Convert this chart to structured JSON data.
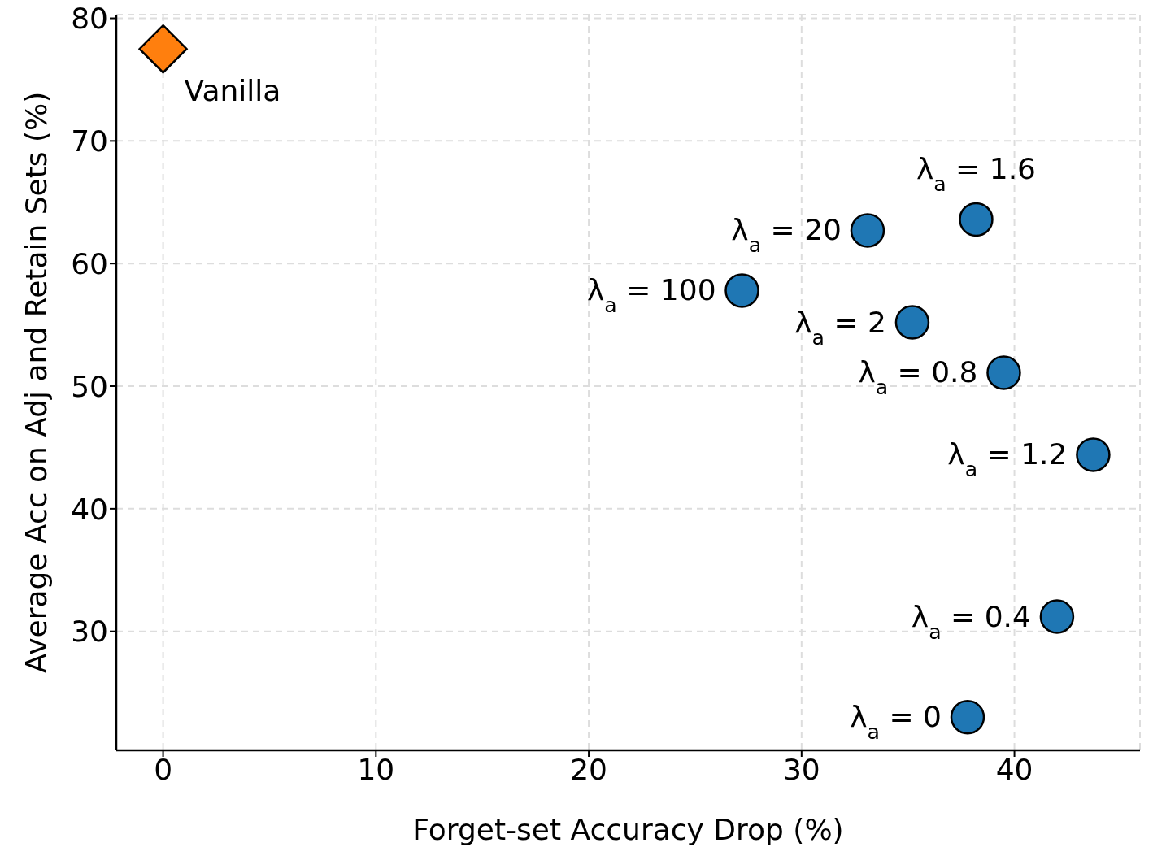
{
  "chart_data": {
    "type": "scatter",
    "xlabel": "Forget-set Accuracy Drop (%)",
    "ylabel": "Average Acc on Adj and Retain Sets (%)",
    "xlim": [
      -2.2,
      45.9
    ],
    "ylim": [
      20.3,
      80.3
    ],
    "xticks": [
      0,
      10,
      20,
      30,
      40
    ],
    "yticks": [
      30,
      40,
      50,
      60,
      70,
      80
    ],
    "grid": true,
    "legend": false,
    "series": [
      {
        "color": "#1f77b4",
        "marker": "circle",
        "x": [
          38.2,
          33.1,
          27.2,
          35.2,
          39.5,
          43.7,
          42.0,
          37.8
        ],
        "values": [
          63.6,
          62.7,
          57.8,
          55.2,
          51.1,
          44.4,
          31.2,
          23.0
        ]
      },
      {
        "color": "#ff7f0e",
        "marker": "diamond",
        "x": [
          0
        ],
        "values": [
          77.5
        ]
      }
    ],
    "annotations": [
      {
        "text": "Vanilla",
        "x": 0,
        "y": 77.5
      },
      {
        "text": "λ$_{a}$ = 1.6",
        "x": 38.2,
        "y": 63.6
      },
      {
        "text": "λ$_{a}$ = 20",
        "x": 33.1,
        "y": 62.7
      },
      {
        "text": "λ$_{a}$ = 100",
        "x": 27.2,
        "y": 57.8
      },
      {
        "text": "λ$_{a}$ = 2",
        "x": 35.2,
        "y": 55.2
      },
      {
        "text": "λ$_{a}$ = 0.8",
        "x": 39.5,
        "y": 51.1
      },
      {
        "text": "λ$_{a}$ = 1.2",
        "x": 43.7,
        "y": 44.4
      },
      {
        "text": "λ$_{a}$ = 0.4",
        "x": 42.0,
        "y": 31.2
      },
      {
        "text": "λ$_{a}$ = 0",
        "x": 37.8,
        "y": 23.0
      }
    ]
  }
}
